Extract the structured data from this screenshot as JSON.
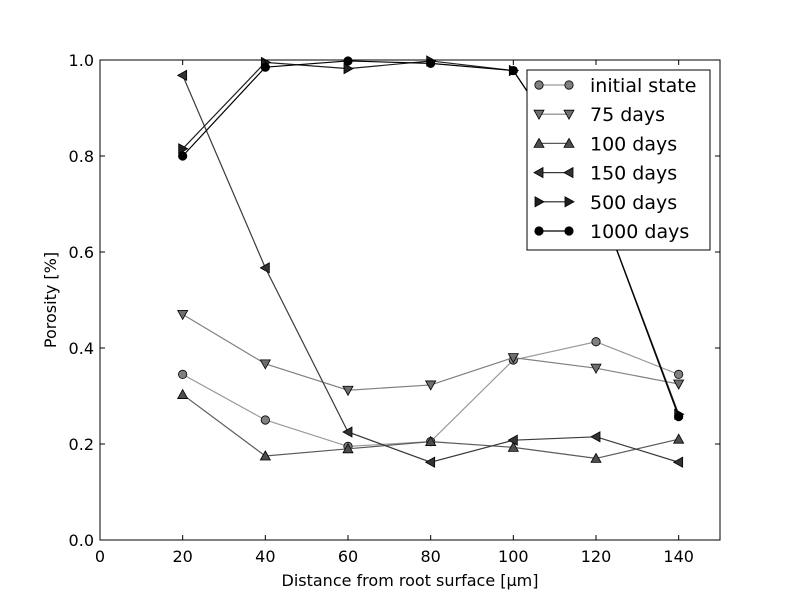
{
  "chart_data": {
    "type": "line",
    "xlabel": "Distance from root surface [μm]",
    "ylabel": "Porosity [%]",
    "xlim": [
      0,
      150
    ],
    "ylim": [
      0.0,
      1.0
    ],
    "x_ticks": [
      0,
      20,
      40,
      60,
      80,
      100,
      120,
      140
    ],
    "y_ticks": [
      0.0,
      0.2,
      0.4,
      0.6,
      0.8,
      1.0
    ],
    "x_tick_labels": [
      "0",
      "20",
      "40",
      "60",
      "80",
      "100",
      "120",
      "140"
    ],
    "y_tick_labels": [
      "0.0",
      "0.2",
      "0.4",
      "0.6",
      "0.8",
      "1.0"
    ],
    "grid": false,
    "legend_position": "top-right",
    "x": [
      20,
      40,
      60,
      80,
      100,
      120,
      140
    ],
    "series": [
      {
        "name": "initial state",
        "marker": "circle",
        "color": "#808080",
        "line_color": "#9a9a9a",
        "values": [
          0.345,
          0.25,
          0.195,
          0.205,
          0.375,
          0.413,
          0.345
        ]
      },
      {
        "name": "75 days",
        "marker": "triangle-down",
        "color": "#6e6e6e",
        "line_color": "#808080",
        "values": [
          0.47,
          0.367,
          0.312,
          0.323,
          0.38,
          0.358,
          0.325
        ]
      },
      {
        "name": "100 days",
        "marker": "triangle-up",
        "color": "#4d4d4d",
        "line_color": "#5a5a5a",
        "values": [
          0.303,
          0.175,
          0.19,
          0.205,
          0.193,
          0.17,
          0.21
        ]
      },
      {
        "name": "150 days",
        "marker": "triangle-left",
        "color": "#333333",
        "line_color": "#3a3a3a",
        "values": [
          0.968,
          0.567,
          0.225,
          0.162,
          0.208,
          0.215,
          0.162
        ]
      },
      {
        "name": "500 days",
        "marker": "triangle-right",
        "color": "#1f1f1f",
        "line_color": "#1f1f1f",
        "values": [
          0.815,
          0.995,
          0.982,
          0.998,
          0.978,
          0.72,
          0.262
        ]
      },
      {
        "name": "1000 days",
        "marker": "circle",
        "color": "#000000",
        "line_color": "#000000",
        "values": [
          0.8,
          0.985,
          0.998,
          0.993,
          0.978,
          0.72,
          0.257
        ]
      }
    ]
  }
}
